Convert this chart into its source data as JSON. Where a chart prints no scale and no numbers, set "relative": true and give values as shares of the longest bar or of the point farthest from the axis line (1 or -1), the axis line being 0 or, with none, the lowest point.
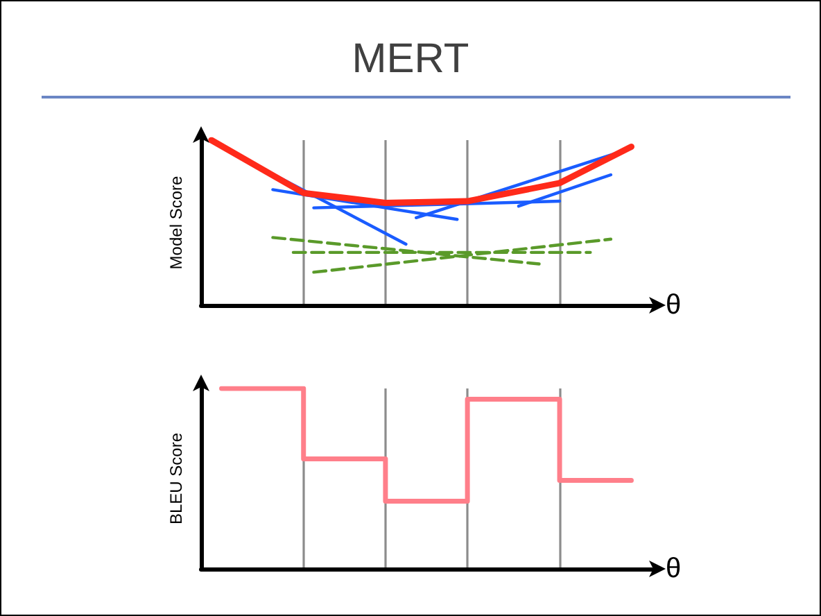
{
  "chart_data": [
    {
      "type": "line",
      "title": "MERT",
      "xlabel": "θ",
      "ylabel": "Model Score",
      "relative": true,
      "grid": "x",
      "categories": [
        null,
        null,
        null,
        null,
        null,
        null,
        null,
        null,
        null,
        null,
        null,
        null,
        null,
        null,
        null,
        null,
        null,
        null,
        null,
        null,
        null,
        null,
        null,
        null,
        null,
        null,
        null,
        null,
        null,
        null,
        null,
        null,
        null,
        null,
        null,
        null,
        null,
        null,
        null,
        null,
        null,
        null,
        null,
        null,
        null
      ],
      "series": [
        {
          "color": "#1a5cff",
          "values": [
            null,
            0.99,
            null,
            null,
            null,
            null,
            null,
            null,
            null,
            null,
            null,
            null,
            null,
            null,
            null,
            null,
            null,
            null,
            null,
            null,
            0.37,
            null,
            null,
            null,
            null,
            null,
            null,
            null,
            null,
            null,
            null,
            null,
            null,
            null,
            null,
            null,
            null,
            null,
            null,
            null,
            null,
            null,
            null,
            null,
            null
          ]
        },
        {
          "color": "#1a5cff",
          "values": [
            null,
            null,
            null,
            null,
            null,
            null,
            null,
            0.7,
            null,
            null,
            null,
            null,
            null,
            null,
            null,
            null,
            null,
            null,
            null,
            null,
            null,
            null,
            null,
            null,
            null,
            0.52,
            null,
            null,
            null,
            null,
            null,
            null,
            null,
            null,
            null,
            null,
            null,
            null,
            null,
            null,
            null,
            null,
            null,
            null,
            null
          ]
        },
        {
          "color": "#1a5cff",
          "values": [
            null,
            null,
            null,
            null,
            null,
            null,
            null,
            null,
            null,
            null,
            null,
            0.59,
            null,
            null,
            null,
            null,
            null,
            null,
            null,
            null,
            null,
            null,
            null,
            null,
            null,
            null,
            null,
            null,
            null,
            null,
            null,
            null,
            null,
            null,
            null,
            0.63,
            null,
            null,
            null,
            null,
            null,
            null,
            null,
            null,
            null
          ]
        },
        {
          "color": "#1a5cff",
          "values": [
            null,
            null,
            null,
            null,
            null,
            null,
            null,
            null,
            null,
            null,
            null,
            null,
            null,
            null,
            null,
            null,
            null,
            null,
            null,
            null,
            null,
            0.53,
            null,
            null,
            null,
            null,
            null,
            null,
            null,
            null,
            null,
            null,
            null,
            null,
            null,
            null,
            null,
            null,
            null,
            null,
            null,
            null,
            0.95,
            null,
            null
          ]
        },
        {
          "color": "#1a5cff",
          "values": [
            null,
            null,
            null,
            null,
            null,
            null,
            null,
            null,
            null,
            null,
            null,
            null,
            null,
            null,
            null,
            null,
            null,
            null,
            null,
            null,
            null,
            null,
            null,
            null,
            null,
            null,
            null,
            null,
            null,
            null,
            null,
            0.6,
            null,
            null,
            null,
            null,
            null,
            null,
            null,
            null,
            0.79,
            null,
            null,
            null,
            null
          ]
        },
        {
          "color": "#5a9a2a",
          "line_style": "dashed",
          "values": [
            null,
            null,
            null,
            null,
            null,
            null,
            null,
            0.41,
            null,
            null,
            null,
            null,
            null,
            null,
            null,
            null,
            null,
            null,
            null,
            null,
            null,
            null,
            null,
            null,
            null,
            null,
            null,
            null,
            null,
            null,
            null,
            null,
            null,
            0.25,
            null,
            null,
            null,
            null,
            null,
            null,
            null,
            null,
            null,
            null,
            null
          ]
        },
        {
          "color": "#5a9a2a",
          "line_style": "dashed",
          "values": [
            null,
            null,
            null,
            null,
            null,
            null,
            null,
            null,
            null,
            0.32,
            null,
            null,
            null,
            null,
            null,
            null,
            null,
            null,
            null,
            null,
            null,
            null,
            null,
            null,
            null,
            null,
            null,
            null,
            null,
            null,
            null,
            null,
            null,
            null,
            null,
            null,
            null,
            null,
            0.32,
            null,
            null,
            null,
            null,
            null,
            null
          ]
        },
        {
          "color": "#5a9a2a",
          "line_style": "dashed",
          "values": [
            null,
            null,
            null,
            null,
            null,
            null,
            null,
            null,
            null,
            null,
            null,
            0.2,
            null,
            null,
            null,
            null,
            null,
            null,
            null,
            null,
            null,
            null,
            null,
            null,
            null,
            null,
            null,
            null,
            null,
            null,
            null,
            null,
            null,
            null,
            null,
            null,
            null,
            null,
            null,
            null,
            0.4,
            null,
            null,
            null,
            null
          ]
        },
        {
          "color": "#ff2a1a",
          "values": [
            null,
            1,
            null,
            null,
            null,
            null,
            null,
            null,
            null,
            null,
            0.68,
            null,
            null,
            null,
            null,
            null,
            null,
            null,
            0.62,
            null,
            null,
            null,
            null,
            null,
            null,
            null,
            0.63,
            null,
            null,
            null,
            null,
            null,
            null,
            null,
            null,
            0.74,
            null,
            null,
            null,
            null,
            null,
            null,
            0.96,
            null,
            null
          ]
        }
      ]
    },
    {
      "type": "step",
      "xlabel": "θ",
      "ylabel": "BLEU Score",
      "relative": true,
      "grid": "x",
      "categories": [
        null,
        null,
        null,
        null,
        null,
        null,
        null,
        null,
        null,
        null,
        null,
        null,
        null,
        null,
        null,
        null,
        null,
        null,
        null,
        null,
        null,
        null,
        null,
        null,
        null,
        null,
        null,
        null,
        null,
        null,
        null,
        null,
        null,
        null,
        null,
        null,
        null,
        null,
        null,
        null,
        null,
        null,
        null,
        null,
        null
      ],
      "series": [
        {
          "color": "#ff7f8a",
          "values": [
            null,
            null,
            1,
            null,
            null,
            null,
            null,
            null,
            null,
            null,
            0.61,
            null,
            null,
            null,
            null,
            null,
            null,
            null,
            0.375,
            null,
            null,
            null,
            null,
            null,
            null,
            null,
            0.94,
            null,
            null,
            null,
            null,
            null,
            null,
            null,
            null,
            0.49,
            null,
            null,
            null,
            null,
            null,
            null,
            0.49,
            null,
            null
          ]
        }
      ]
    }
  ]
}
